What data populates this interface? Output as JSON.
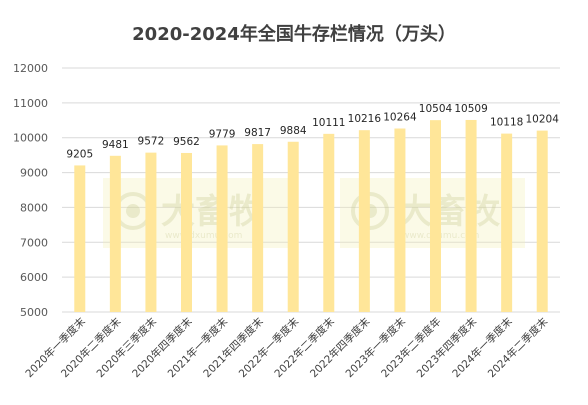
{
  "chart_data": {
    "type": "bar",
    "title": "2020-2024年全国牛存栏情况（万头）",
    "categories": [
      "2020年一季度末",
      "2020年二季度末",
      "2020年三季度末",
      "2020年四季度末",
      "2021年一季度末",
      "2021年四季度末",
      "2022年一季度末",
      "2022年二季度末",
      "2022年四季度末",
      "2023年一季度末",
      "2023年二季度年",
      "2023年四季度末",
      "2024年一季度末",
      "2024年二季度末"
    ],
    "values": [
      9205,
      9481,
      9572,
      9562,
      9779,
      9817,
      9884,
      10111,
      10216,
      10264,
      10504,
      10509,
      10118,
      10204
    ],
    "data_labels": [
      "9205",
      "9481",
      "9572",
      "9562",
      "9779",
      "9817",
      "9884",
      "10111",
      "10216",
      "10264",
      "10504",
      "10509",
      "10118",
      "10204"
    ],
    "ylim": [
      5000,
      12000
    ],
    "yticks": [
      "5000",
      "6000",
      "7000",
      "8000",
      "9000",
      "10000",
      "11000",
      "12000"
    ],
    "grid": true,
    "bar_color": "#FFE699",
    "xlabel": "",
    "ylabel": ""
  },
  "watermark": {
    "text": "大畜牧",
    "url": "www.dxumu.com",
    "color": "#D9D9A0"
  }
}
